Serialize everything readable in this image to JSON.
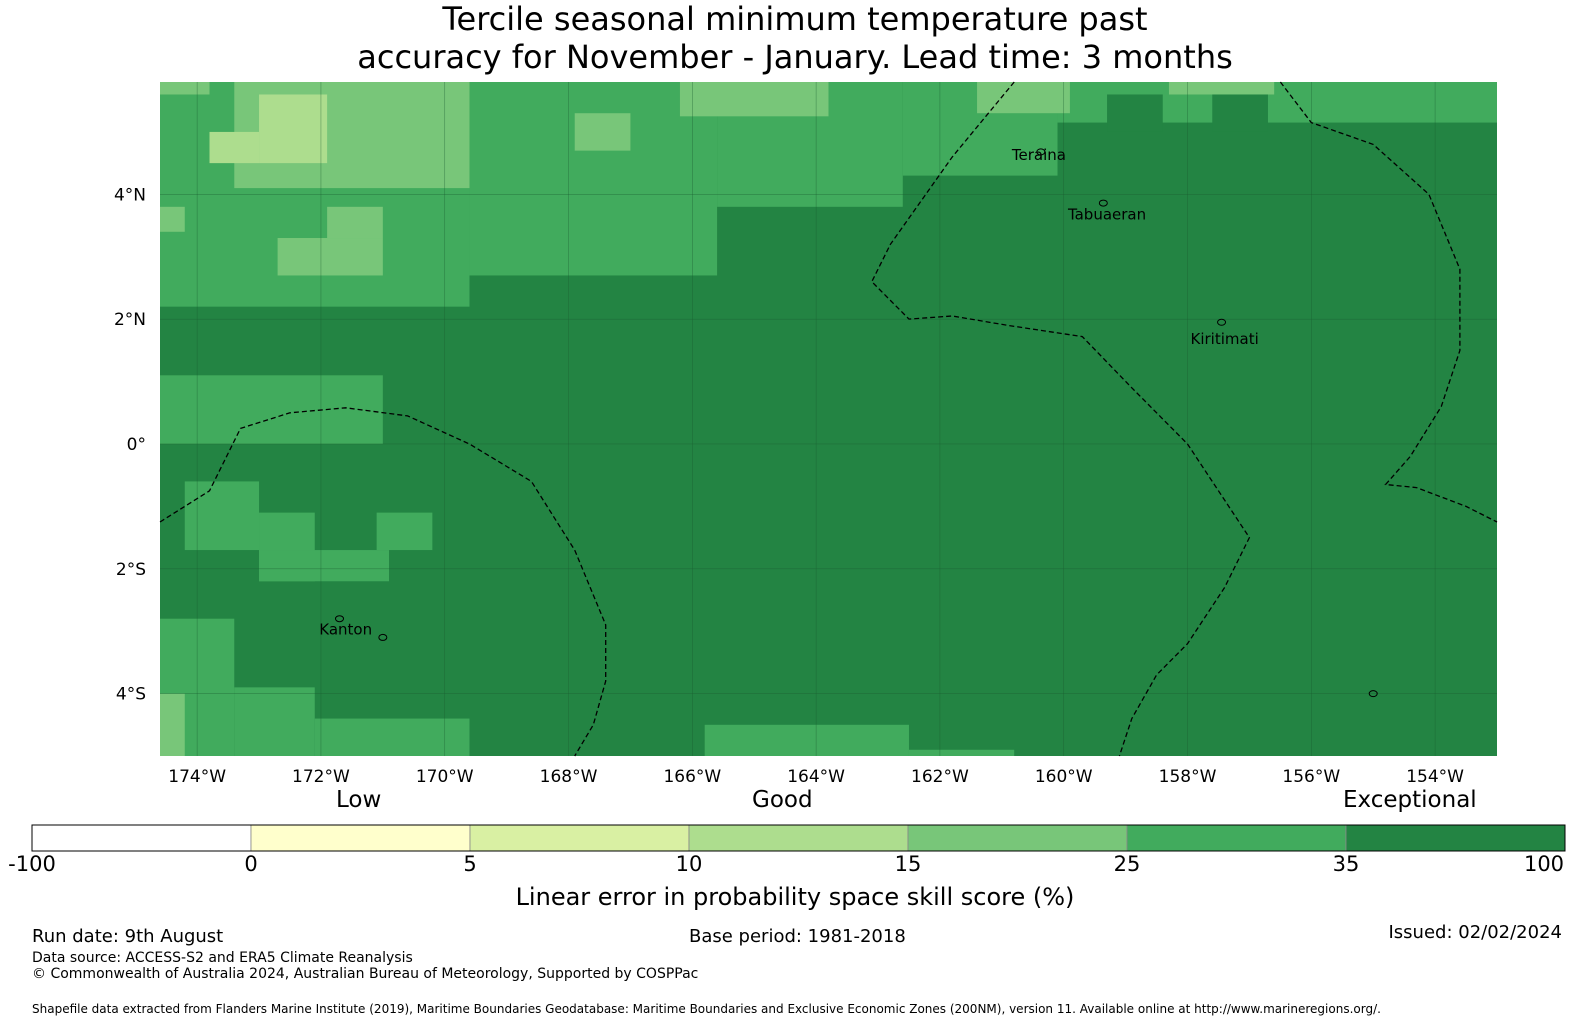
{
  "title": {
    "line1": "Tercile seasonal minimum temperature past",
    "line2": "accuracy for November - January. Lead time: 3 months"
  },
  "map": {
    "lon_range": [
      -174.6,
      -153.0
    ],
    "lat_range": [
      -5.0,
      5.8
    ],
    "lon_ticks": [
      {
        "value": -174,
        "label": "174°W"
      },
      {
        "value": -172,
        "label": "172°W"
      },
      {
        "value": -170,
        "label": "170°W"
      },
      {
        "value": -168,
        "label": "168°W"
      },
      {
        "value": -166,
        "label": "166°W"
      },
      {
        "value": -164,
        "label": "164°W"
      },
      {
        "value": -162,
        "label": "162°W"
      },
      {
        "value": -160,
        "label": "160°W"
      },
      {
        "value": -158,
        "label": "158°W"
      },
      {
        "value": -156,
        "label": "156°W"
      },
      {
        "value": -154,
        "label": "154°W"
      }
    ],
    "lat_ticks": [
      {
        "value": 4,
        "label": "4°N"
      },
      {
        "value": 2,
        "label": "2°N"
      },
      {
        "value": 0,
        "label": "0°"
      },
      {
        "value": -2,
        "label": "2°S"
      },
      {
        "value": -4,
        "label": "4°S"
      }
    ],
    "places": [
      {
        "name": "Teraina",
        "lon": -160.4,
        "lat": 4.55
      },
      {
        "name": "Tabuaeran",
        "lon": -159.3,
        "lat": 3.6
      },
      {
        "name": "Kiritimati",
        "lon": -157.4,
        "lat": 1.6
      },
      {
        "name": "Kanton",
        "lon": -171.6,
        "lat": -3.05
      }
    ],
    "colors": {
      "dark": "#238443",
      "medium": "#41ab5d",
      "light": "#78c679",
      "pale": "#addd8e",
      "grid": "#1a5c30",
      "border": "#000000"
    }
  },
  "colorbar": {
    "categories": [
      "Low",
      "Good",
      "Exceptional"
    ],
    "ticks": [
      "-100",
      "0",
      "5",
      "10",
      "15",
      "25",
      "35",
      "100"
    ],
    "colors": [
      "#ffffff",
      "#ffffcc",
      "#d9f0a3",
      "#addd8e",
      "#78c679",
      "#41ab5d",
      "#238443"
    ],
    "label": "Linear error in probability space skill score (%)"
  },
  "footer": {
    "run_date": "Run date: 9th August",
    "base_period": "Base period: 1981-2018",
    "issued": "Issued: 02/02/2024",
    "data_source": "Data source: ACCESS-S2 and ERA5 Climate Reanalysis",
    "copyright": "© Commonwealth of Australia 2024, Australian Bureau of Meteorology, Supported by COSPPac",
    "shapefile": "Shapefile data extracted from Flanders Marine Institute (2019), Maritime Boundaries Geodatabase: Maritime Boundaries and Exclusive Economic Zones (200NM), version 11. Available online at http://www.marineregions.org/."
  }
}
